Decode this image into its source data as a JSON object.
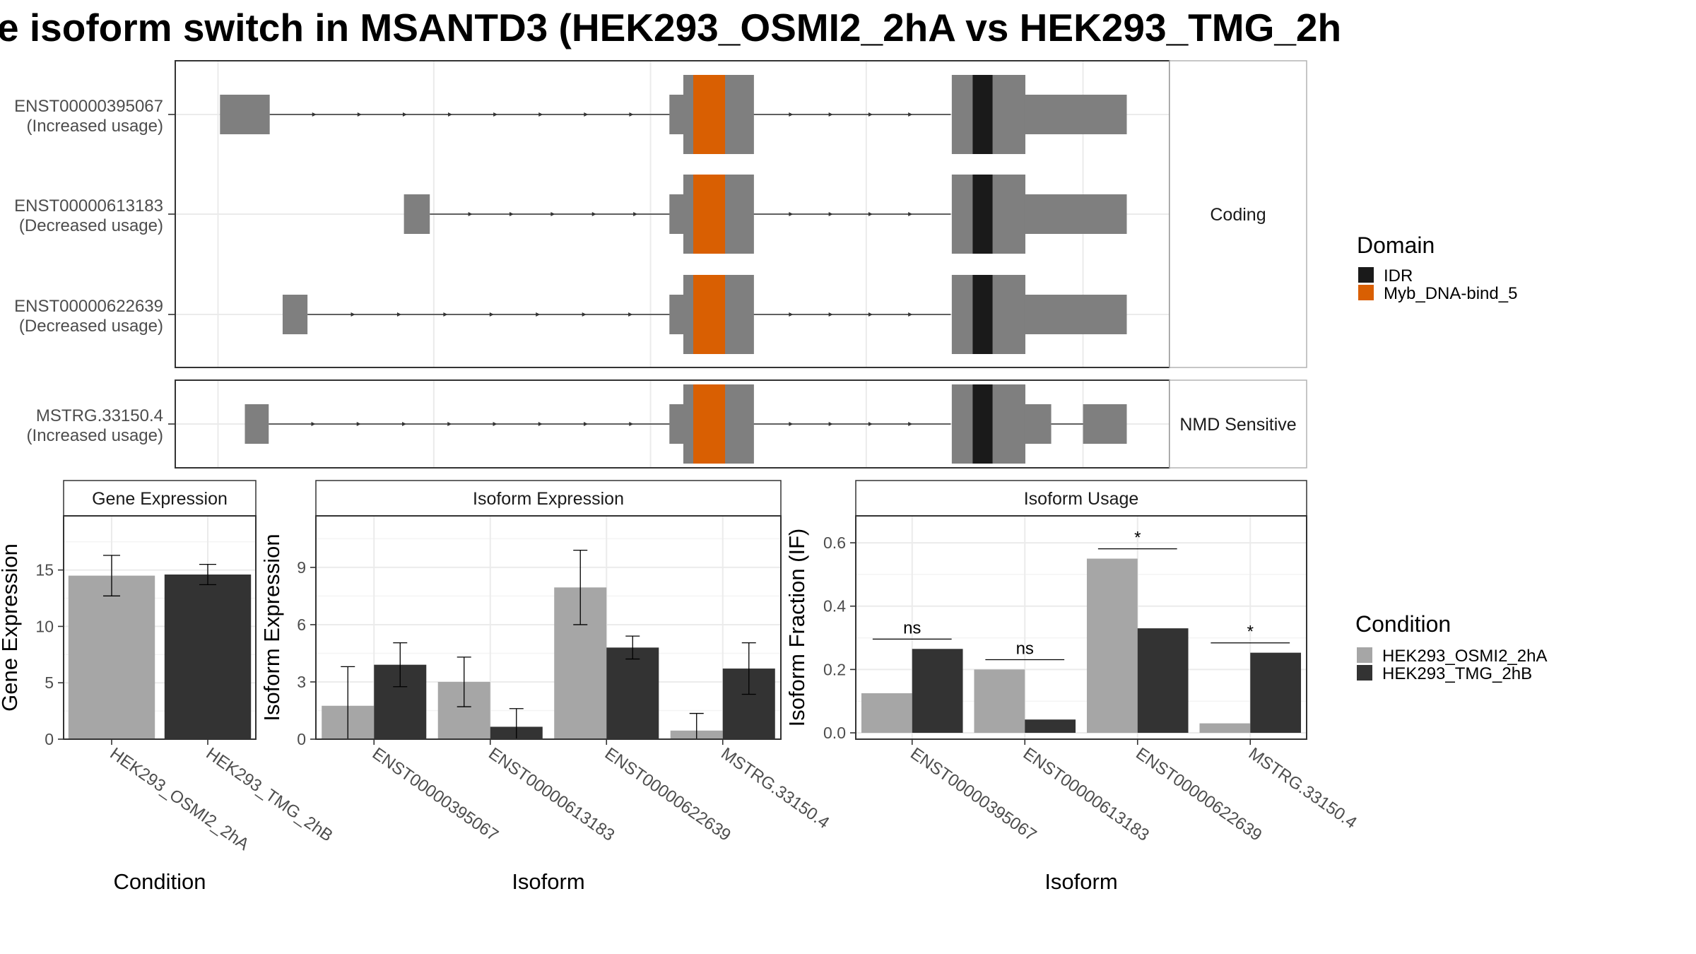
{
  "title": "e isoform switch in MSANTD3 (HEK293_OSMI2_2hA vs HEK293_TMG_2h",
  "colors": {
    "exon": "#7f7f7f",
    "idr": "#1a1a1a",
    "myb": "#d95f02",
    "cond_a": "#a6a6a6",
    "cond_b": "#333333",
    "grid": "#ebebeb",
    "panel_border": "#333333"
  },
  "structure": {
    "groups": [
      {
        "label": "Coding",
        "transcripts": [
          {
            "id": "ENST00000395067",
            "usage": "(Increased usage)",
            "first_exon": [
              0.045,
              0.095
            ]
          },
          {
            "id": "ENST00000613183",
            "usage": "(Decreased usage)",
            "first_exon": [
              0.23,
              0.256
            ]
          },
          {
            "id": "ENST00000622639",
            "usage": "(Decreased usage)",
            "first_exon": [
              0.108,
              0.133
            ]
          }
        ]
      },
      {
        "label": "NMD Sensitive",
        "transcripts": [
          {
            "id": "MSTRG.33150.4",
            "usage": "(Increased usage)",
            "first_exon": [
              0.07,
              0.094
            ]
          }
        ]
      }
    ]
  },
  "legend_domain": {
    "title": "Domain",
    "items": [
      {
        "label": "IDR",
        "color": "#1a1a1a"
      },
      {
        "label": "Myb_DNA-bind_5",
        "color": "#d95f02"
      }
    ]
  },
  "legend_condition": {
    "title": "Condition",
    "items": [
      {
        "label": "HEK293_OSMI2_2hA",
        "color": "#a6a6a6"
      },
      {
        "label": "HEK293_TMG_2hB",
        "color": "#333333"
      }
    ]
  },
  "chart_data": [
    {
      "type": "bar",
      "title": "Gene Expression",
      "xlabel": "Condition",
      "ylabel": "Gene Expression",
      "categories": [
        "HEK293_OSMI2_2hA",
        "HEK293_TMG_2hB"
      ],
      "values": [
        14.5,
        14.6
      ],
      "error": [
        [
          12.7,
          16.3
        ],
        [
          13.7,
          15.5
        ]
      ],
      "ylim": [
        0,
        19.8
      ],
      "yticks": [
        0,
        5,
        10,
        15
      ],
      "ytick_labels": [
        "0",
        "5",
        "10",
        "15"
      ]
    },
    {
      "type": "bar",
      "title": "Isoform Expression",
      "xlabel": "Isoform",
      "ylabel": "Isoform Expression",
      "categories": [
        "ENST00000395067",
        "ENST00000613183",
        "ENST00000622639",
        "MSTRG.33150.4"
      ],
      "series": [
        {
          "name": "HEK293_OSMI2_2hA",
          "values": [
            1.75,
            3.0,
            7.95,
            0.45
          ],
          "error": [
            [
              0.0,
              3.8
            ],
            [
              1.7,
              4.3
            ],
            [
              6.0,
              9.9
            ],
            [
              0.0,
              1.35
            ]
          ]
        },
        {
          "name": "HEK293_TMG_2hB",
          "values": [
            3.9,
            0.65,
            4.8,
            3.7
          ],
          "error": [
            [
              2.75,
              5.05
            ],
            [
              0.0,
              1.6
            ],
            [
              4.2,
              5.4
            ],
            [
              2.35,
              5.05
            ]
          ]
        }
      ],
      "ylim": [
        0,
        11.7
      ],
      "yticks": [
        0,
        3,
        6,
        9
      ],
      "ytick_labels": [
        "0",
        "3",
        "6",
        "9"
      ]
    },
    {
      "type": "bar",
      "title": "Isoform Usage",
      "xlabel": "Isoform",
      "ylabel": "Isoform Fraction (IF)",
      "categories": [
        "ENST00000395067",
        "ENST00000613183",
        "ENST00000622639",
        "MSTRG.33150.4"
      ],
      "series": [
        {
          "name": "HEK293_OSMI2_2hA",
          "values": [
            0.125,
            0.2,
            0.55,
            0.03
          ]
        },
        {
          "name": "HEK293_TMG_2hB",
          "values": [
            0.265,
            0.042,
            0.33,
            0.253
          ]
        }
      ],
      "significance": [
        "ns",
        "ns",
        "*",
        "*"
      ],
      "sig_y": [
        0.296,
        0.231,
        0.581,
        0.284
      ],
      "ylim": [
        -0.02,
        0.685
      ],
      "yticks": [
        0.0,
        0.2,
        0.4,
        0.6
      ],
      "ytick_labels": [
        "0.0",
        "0.2",
        "0.4",
        "0.6"
      ]
    }
  ]
}
